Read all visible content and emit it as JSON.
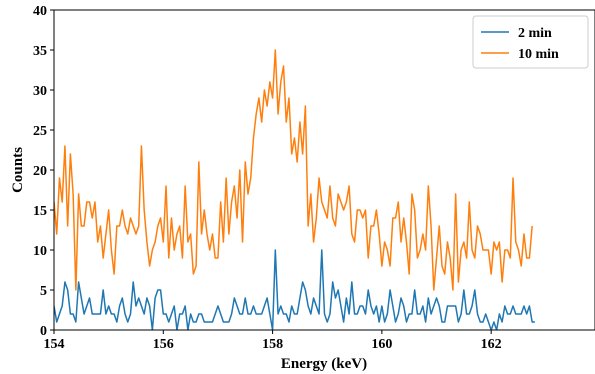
{
  "chart_data": {
    "type": "line",
    "xlabel": "Energy (keV)",
    "ylabel": "Counts",
    "xlim": [
      154,
      163.9
    ],
    "ylim": [
      0,
      40
    ],
    "xticks": [
      154,
      156,
      158,
      160,
      162
    ],
    "yticks": [
      0,
      5,
      10,
      15,
      20,
      25,
      30,
      35,
      40
    ],
    "legend_position": "top-right",
    "x_start": 154,
    "x_step": 0.05,
    "series": [
      {
        "name": "2 min",
        "color": "#1f77b4",
        "values": [
          3,
          1,
          2,
          3,
          6,
          5,
          2,
          2,
          1,
          6,
          4,
          2,
          3,
          4,
          2,
          2,
          2,
          2,
          5,
          2,
          3,
          2,
          2,
          1,
          3,
          4,
          2,
          1,
          2,
          6,
          3,
          4,
          3,
          2,
          4,
          3,
          0,
          4,
          5,
          5,
          2,
          2,
          1,
          2,
          3,
          0,
          2,
          2,
          3,
          0,
          2,
          1,
          1,
          2,
          2,
          1,
          1,
          1,
          1,
          2,
          3,
          2,
          1,
          1,
          1,
          2,
          4,
          3,
          2,
          2,
          4,
          2,
          2,
          3,
          2,
          2,
          2,
          3,
          4,
          2,
          0,
          10,
          2,
          3,
          2,
          2,
          1,
          3,
          2,
          2,
          4,
          6,
          5,
          3,
          2,
          4,
          3,
          2,
          10,
          2,
          1,
          2,
          6,
          4,
          5,
          3,
          1,
          4,
          2,
          6,
          2,
          2,
          3,
          3,
          2,
          5,
          3,
          2,
          3,
          1,
          3,
          1,
          2,
          5,
          3,
          1,
          2,
          4,
          3,
          1,
          2,
          2,
          5,
          2,
          2,
          3,
          1,
          4,
          2,
          3,
          4,
          3,
          1,
          1,
          3,
          3,
          3,
          3,
          1,
          2,
          5,
          2,
          2,
          3,
          5,
          2,
          1,
          1,
          2,
          1,
          0,
          1,
          0,
          2,
          1,
          3,
          2,
          2,
          3,
          2,
          2,
          2,
          3,
          2,
          3,
          1,
          1
        ]
      },
      {
        "name": "10 min",
        "color": "#ff7f0e",
        "values": [
          16,
          12,
          19,
          16,
          23,
          13,
          22,
          17,
          5,
          17,
          13,
          13,
          16,
          16,
          14,
          16,
          11,
          13,
          9,
          12,
          15,
          10,
          7,
          13,
          13,
          15,
          13,
          12,
          14,
          13,
          12,
          13,
          23,
          15,
          11,
          8,
          10,
          11,
          13,
          14,
          11,
          18,
          9,
          14,
          10,
          12,
          13,
          9,
          18,
          11,
          12,
          7,
          8,
          21,
          12,
          15,
          12,
          10,
          12,
          9,
          9,
          16,
          11,
          19,
          12,
          16,
          18,
          14,
          20,
          11,
          21,
          17,
          19,
          24,
          27,
          29,
          26,
          30,
          28,
          31,
          29,
          35,
          27,
          31,
          33,
          26,
          29,
          22,
          24,
          21,
          26,
          22,
          28,
          13,
          17,
          11,
          14,
          19,
          16,
          15,
          14,
          18,
          14,
          13,
          17,
          16,
          15,
          16,
          18,
          12,
          11,
          15,
          15,
          14,
          15,
          9,
          13,
          13,
          15,
          12,
          8,
          11,
          10,
          8,
          14,
          14,
          16,
          11,
          14,
          11,
          7,
          17,
          15,
          9,
          10,
          12,
          10,
          18,
          13,
          5,
          9,
          13,
          8,
          7,
          11,
          9,
          5,
          17,
          6,
          10,
          11,
          9,
          16,
          10,
          9,
          13,
          12,
          10,
          10,
          10,
          7,
          11,
          10,
          11,
          6,
          10,
          10,
          9,
          19,
          11,
          10,
          8,
          12,
          9,
          9,
          13
        ]
      }
    ]
  }
}
